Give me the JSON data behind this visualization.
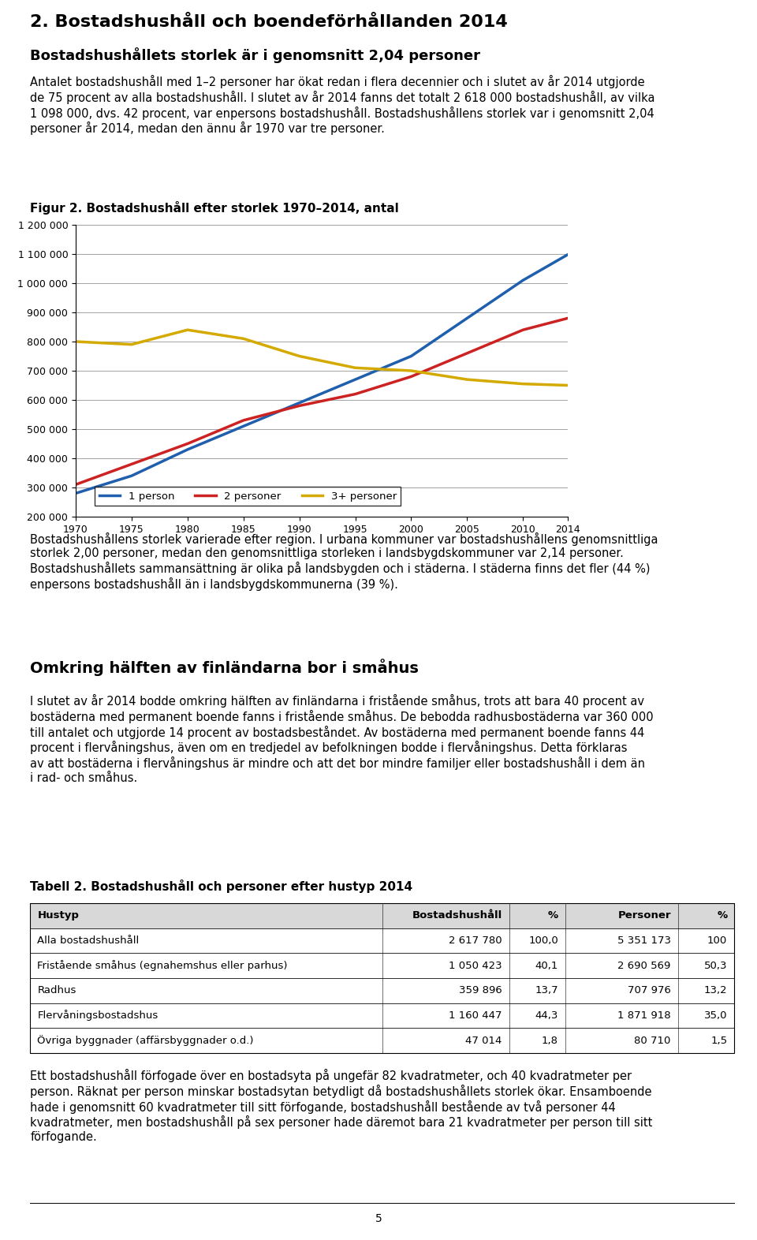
{
  "title_main": "2. Bostadshushåll och boendeförhållanden 2014",
  "para1": "Bostadshushållets storlek är i genomsnitt 2,04 personer",
  "para2": "Antalet bostadshushåll med 1–2 personer har ökat redan i flera decennier och i slutet av år 2014 utgjorde\nde 75 procent av alla bostadshushåll. I slutet av år 2014 fanns det totalt 2 618 000 bostadshushåll, av vilka\n1 098 000, dvs. 42 procent, var enpersons bostadshushåll. Bostadshushållens storlek var i genomsnitt 2,04\npersoner år 2014, medan den ännu år 1970 var tre personer.",
  "fig_title": "Figur 2. Bostadshushåll efter storlek 1970–2014, antal",
  "years": [
    1970,
    1975,
    1980,
    1985,
    1990,
    1995,
    2000,
    2005,
    2010,
    2014
  ],
  "one_person": [
    280000,
    340000,
    430000,
    510000,
    590000,
    670000,
    750000,
    880000,
    1010000,
    1098000
  ],
  "two_persons": [
    310000,
    380000,
    450000,
    530000,
    580000,
    620000,
    680000,
    760000,
    840000,
    880000
  ],
  "three_plus": [
    800000,
    790000,
    840000,
    810000,
    750000,
    710000,
    700000,
    670000,
    655000,
    650000
  ],
  "color_one": "#1f5fad",
  "color_two": "#cc2222",
  "color_three": "#d4aa00",
  "legend_labels": [
    "1 person",
    "2 personer",
    "3+ personer"
  ],
  "ylim": [
    200000,
    1200000
  ],
  "yticks": [
    200000,
    300000,
    400000,
    500000,
    600000,
    700000,
    800000,
    900000,
    1000000,
    1100000,
    1200000
  ],
  "xticks": [
    1970,
    1975,
    1980,
    1985,
    1990,
    1995,
    2000,
    2005,
    2010,
    2014
  ],
  "para3": "Bostadshushållens storlek varierade efter region. I urbana kommuner var bostadshushållens genomsnittliga\nstorlek 2,00 personer, medan den genomsnittliga storleken i landsbygdskommuner var 2,14 personer.\nBostadshushållets sammansättning är olika på landsbygden och i städerna. I städerna finns det fler (44 %)\nenpersons bostadshushåll än i landsbygdskommunerna (39 %).",
  "heading2": "Omkring hälften av finländarna bor i småhus",
  "para4": "I slutet av år 2014 bodde omkring hälften av finländarna i fristående småhus, trots att bara 40 procent av\nbostäderna med permanent boende fanns i fristående småhus. De bebodda radhusbostäderna var 360 000\ntill antalet och utgjorde 14 procent av bostadsbeståndet. Av bostäderna med permanent boende fanns 44\nprocent i flervåningshus, även om en tredjedel av befolkningen bodde i flervåningshus. Detta förklaras\nav att bostäderna i flervåningshus är mindre och att det bor mindre familjer eller bostadshushåll i dem än\ni rad- och småhus.",
  "table_title": "Tabell 2. Bostadshushåll och personer efter hustyp 2014",
  "table_headers": [
    "Hustyp",
    "Bostadshushåll",
    "%",
    "Personer",
    "%"
  ],
  "table_rows": [
    [
      "Alla bostadshushåll",
      "2 617 780",
      "100,0",
      "5 351 173",
      "100"
    ],
    [
      "Fristående småhus (egnahemshus eller parhus)",
      "1 050 423",
      "40,1",
      "2 690 569",
      "50,3"
    ],
    [
      "Radhus",
      "359 896",
      "13,7",
      "707 976",
      "13,2"
    ],
    [
      "Flervåningsbostadshus",
      "1 160 447",
      "44,3",
      "1 871 918",
      "35,0"
    ],
    [
      "Övriga byggnader (affärsbyggnader o.d.)",
      "47 014",
      "1,8",
      "80 710",
      "1,5"
    ]
  ],
  "para5": "Ett bostadshushåll förfogade över en bostadsyta på ungefär 82 kvadratmeter, och 40 kvadratmeter per\nperson. Räknat per person minskar bostadsytan betydligt då bostadshushållets storlek ökar. Ensamboende\nhade i genomsnitt 60 kvadratmeter till sitt förfogande, bostadshushåll bestående av två personer 44\nkvadratmeter, men bostadshushåll på sex personer hade däremot bara 21 kvadratmeter per person till sitt\nförfogande.",
  "footer_page": "5"
}
